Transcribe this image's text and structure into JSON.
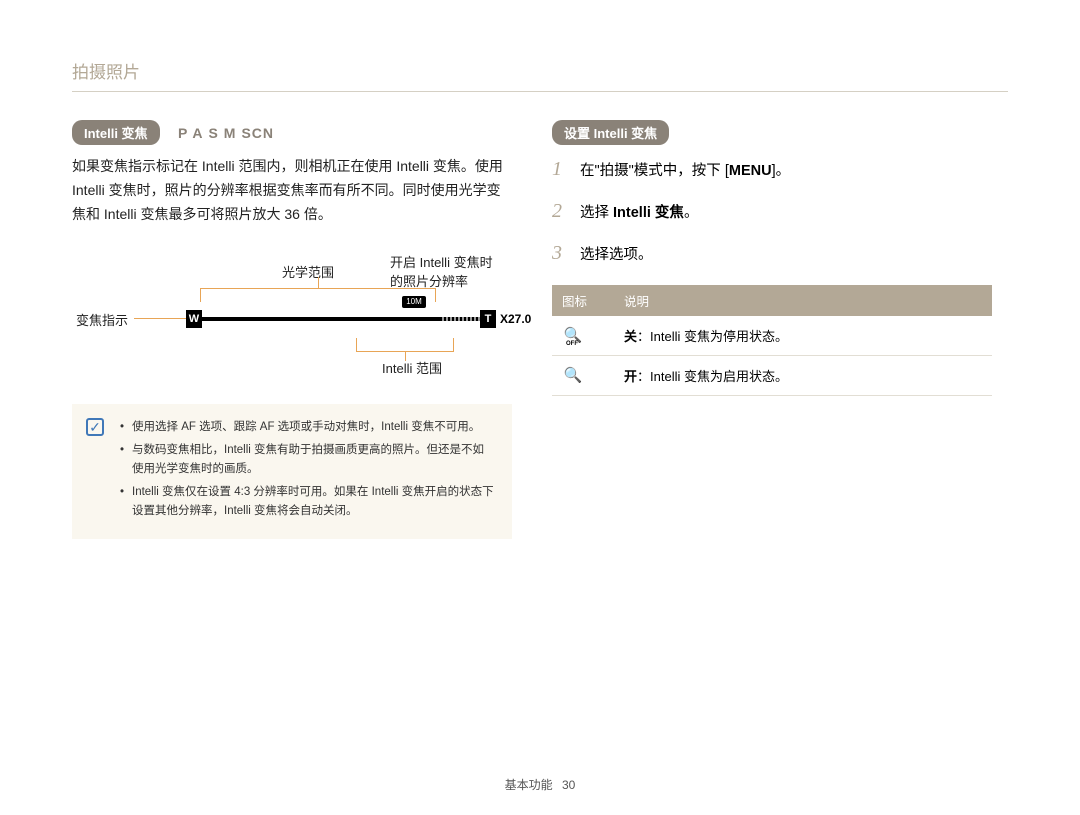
{
  "page_title": "拍摄照片",
  "left": {
    "pill": "Intelli 变焦",
    "modes": [
      "P",
      "A",
      "S",
      "M"
    ],
    "modes_tail": "SCN",
    "para": "如果变焦指示标记在 Intelli 范围内，则相机正在使用 Intelli 变焦。使用 Intelli 变焦时，照片的分辨率根据变焦率而有所不同。同时使用光学变焦和 Intelli 变焦最多可将照片放大 36 倍。",
    "diagram": {
      "zoom_indicator_label": "变焦指示",
      "optical_label": "光学范围",
      "resolution_label_1": "开启 Intelli 变焦时",
      "resolution_label_2": "的照片分辨率",
      "intelli_range_label": "Intelli 范围",
      "w": "W",
      "t": "T",
      "ten": "10M",
      "x": "X27.0"
    },
    "notes": [
      "使用选择 AF 选项、跟踪 AF 选项或手动对焦时，Intelli 变焦不可用。",
      "与数码变焦相比，Intelli 变焦有助于拍摄画质更高的照片。但还是不如使用光学变焦时的画质。",
      "Intelli 变焦仅在设置 4:3 分辨率时可用。如果在 Intelli 变焦开启的状态下设置其他分辨率，Intelli 变焦将会自动关闭。"
    ]
  },
  "right": {
    "pill": "设置 Intelli 变焦",
    "steps": [
      {
        "n": "1",
        "pre": "在\"拍摄\"模式中，按下 [",
        "menu": "MENU",
        "post": "]。"
      },
      {
        "n": "2",
        "pre": "选择 ",
        "bold": "Intelli 变焦",
        "post": "。"
      },
      {
        "n": "3",
        "pre": "选择选项。",
        "bold": "",
        "post": ""
      }
    ],
    "table": {
      "col_icon": "图标",
      "col_desc": "说明",
      "rows": [
        {
          "icon_type": "off",
          "label": "关",
          "desc": "：Intelli 变焦为停用状态。"
        },
        {
          "icon_type": "on",
          "label": "开",
          "desc": "：Intelli 变焦为启用状态。"
        }
      ]
    }
  },
  "footer": {
    "section": "基本功能",
    "page": "30"
  }
}
